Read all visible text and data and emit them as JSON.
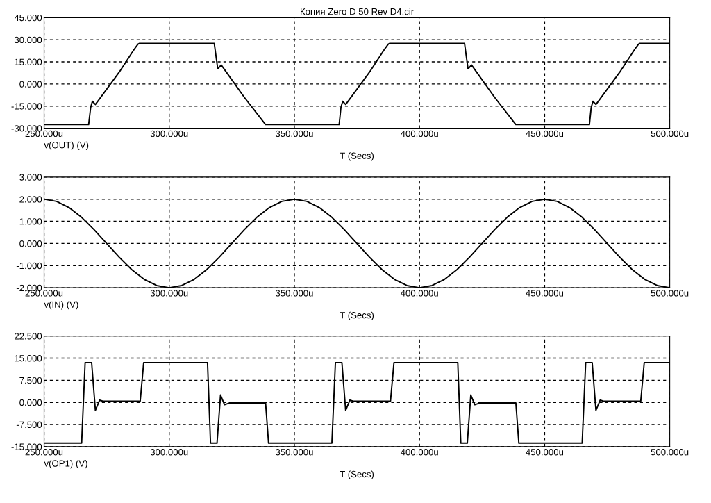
{
  "chart_data": [
    {
      "type": "line",
      "title": "Копия Zero D 50 Rev D4.cir",
      "xlabel": "T (Secs)",
      "grid": true,
      "x": [
        250,
        267.8,
        268.6,
        269.3,
        270.5,
        272,
        280,
        286,
        287.5,
        288,
        318,
        318.6,
        319.4,
        320.8,
        322,
        330,
        338.5,
        367.9,
        368.6,
        369.3,
        370.5,
        372,
        380,
        386,
        387.5,
        388,
        418,
        418.6,
        419.4,
        420.8,
        422,
        430,
        438.5,
        467.9,
        468.6,
        469.3,
        470.5,
        472,
        480,
        486,
        487.5,
        488,
        500
      ],
      "series": [
        {
          "name": "v(OUT) (V)",
          "color": "#000000",
          "values": [
            -27.5,
            -27.5,
            -16,
            -11.7,
            -13.9,
            -10.5,
            8,
            23.5,
            27,
            27.5,
            27.5,
            20,
            10.3,
            12.9,
            10,
            -9,
            -27.5,
            -27.5,
            -16,
            -11.7,
            -13.9,
            -10.5,
            8,
            23.5,
            27,
            27.5,
            27.5,
            20,
            10.3,
            12.9,
            10,
            -9,
            -27.5,
            -27.5,
            -16,
            -11.7,
            -13.9,
            -10.5,
            8,
            23.5,
            27,
            27.5,
            27.5
          ]
        }
      ],
      "xlim": [
        250,
        500
      ],
      "xticks": [
        {
          "value": 250,
          "label": "250.000u"
        },
        {
          "value": 300,
          "label": "300.000u"
        },
        {
          "value": 350,
          "label": "350.000u"
        },
        {
          "value": 400,
          "label": "400.000u"
        },
        {
          "value": 450,
          "label": "450.000u"
        },
        {
          "value": 500,
          "label": "500.000u"
        }
      ],
      "ylim": [
        -30,
        45
      ],
      "yticks": [
        {
          "value": -30,
          "label": "-30.000"
        },
        {
          "value": -15,
          "label": "-15.000"
        },
        {
          "value": 0,
          "label": "0.000"
        },
        {
          "value": 15,
          "label": "15.000"
        },
        {
          "value": 30,
          "label": "30.000"
        },
        {
          "value": 45,
          "label": "45.000"
        }
      ]
    },
    {
      "type": "line",
      "xlabel": "T (Secs)",
      "grid": true,
      "x": [
        250,
        255,
        260,
        265,
        270,
        275,
        280,
        285,
        290,
        295,
        300,
        305,
        310,
        315,
        320,
        325,
        330,
        335,
        340,
        345,
        350,
        355,
        360,
        365,
        370,
        375,
        380,
        385,
        390,
        395,
        400,
        405,
        410,
        415,
        420,
        425,
        430,
        435,
        440,
        445,
        450,
        455,
        460,
        465,
        470,
        475,
        480,
        485,
        490,
        495,
        500
      ],
      "series": [
        {
          "name": "v(IN) (V)",
          "color": "#000000",
          "values": [
            2,
            1.9,
            1.62,
            1.18,
            0.62,
            0,
            -0.62,
            -1.18,
            -1.62,
            -1.9,
            -2,
            -1.9,
            -1.62,
            -1.18,
            -0.62,
            0,
            0.62,
            1.18,
            1.62,
            1.9,
            2,
            1.9,
            1.62,
            1.18,
            0.62,
            0,
            -0.62,
            -1.18,
            -1.62,
            -1.9,
            -2,
            -1.9,
            -1.62,
            -1.18,
            -0.62,
            0,
            0.62,
            1.18,
            1.62,
            1.9,
            2,
            1.9,
            1.62,
            1.18,
            0.62,
            0,
            -0.62,
            -1.18,
            -1.62,
            -1.9,
            -2
          ]
        }
      ],
      "xlim": [
        250,
        500
      ],
      "xticks": [
        {
          "value": 250,
          "label": "250.000u"
        },
        {
          "value": 300,
          "label": "300.000u"
        },
        {
          "value": 350,
          "label": "350.000u"
        },
        {
          "value": 400,
          "label": "400.000u"
        },
        {
          "value": 450,
          "label": "450.000u"
        },
        {
          "value": 500,
          "label": "500.000u"
        }
      ],
      "ylim": [
        -2,
        3
      ],
      "yticks": [
        {
          "value": -2,
          "label": "-2.000"
        },
        {
          "value": -1,
          "label": "-1.000"
        },
        {
          "value": 0,
          "label": "0.000"
        },
        {
          "value": 1,
          "label": "1.000"
        },
        {
          "value": 2,
          "label": "2.000"
        },
        {
          "value": 3,
          "label": "3.000"
        }
      ]
    },
    {
      "type": "line",
      "xlabel": "T (Secs)",
      "grid": true,
      "x": [
        250,
        265,
        266.4,
        269,
        270.5,
        272.2,
        273.5,
        288.4,
        289.8,
        315.3,
        316.5,
        319.1,
        320.5,
        322.1,
        324,
        338.5,
        339.7,
        365,
        366.4,
        369,
        370.5,
        372.2,
        373.5,
        388.4,
        389.8,
        415.3,
        416.5,
        419.1,
        420.5,
        422.1,
        424,
        438.5,
        439.7,
        465,
        466.4,
        469,
        470.5,
        472.2,
        473.5,
        488.4,
        489.8,
        500
      ],
      "series": [
        {
          "name": "v(OP1) (V)",
          "color": "#000000",
          "values": [
            -13.8,
            -13.8,
            13.5,
            13.5,
            -2.7,
            0.8,
            0.4,
            0.4,
            13.5,
            13.5,
            -13.8,
            -13.8,
            2.5,
            -0.8,
            -0.2,
            -0.2,
            -13.8,
            -13.8,
            13.5,
            13.5,
            -2.7,
            0.8,
            0.4,
            0.4,
            13.5,
            13.5,
            -13.8,
            -13.8,
            2.5,
            -0.8,
            -0.2,
            -0.2,
            -13.8,
            -13.8,
            13.5,
            13.5,
            -2.7,
            0.8,
            0.4,
            0.4,
            13.5,
            13.5
          ]
        }
      ],
      "xlim": [
        250,
        500
      ],
      "xticks": [
        {
          "value": 250,
          "label": "250.000u"
        },
        {
          "value": 300,
          "label": "300.000u"
        },
        {
          "value": 350,
          "label": "350.000u"
        },
        {
          "value": 400,
          "label": "400.000u"
        },
        {
          "value": 450,
          "label": "450.000u"
        },
        {
          "value": 500,
          "label": "500.000u"
        }
      ],
      "ylim": [
        -15,
        22.5
      ],
      "yticks": [
        {
          "value": -15,
          "label": "-15.000"
        },
        {
          "value": -7.5,
          "label": "-7.500"
        },
        {
          "value": 0,
          "label": "0.000"
        },
        {
          "value": 7.5,
          "label": "7.500"
        },
        {
          "value": 15,
          "label": "15.000"
        },
        {
          "value": 22.5,
          "label": "22.500"
        }
      ]
    }
  ]
}
